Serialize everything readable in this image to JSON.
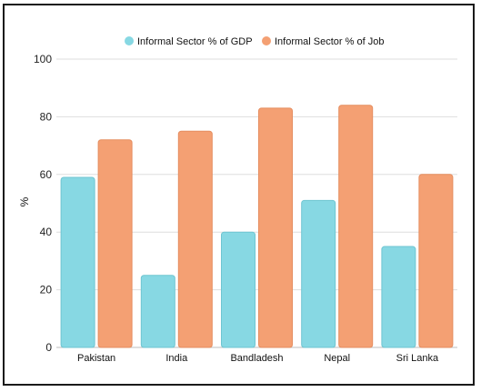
{
  "chart_data": {
    "type": "bar",
    "categories": [
      "Pakistan",
      "India",
      "Bandladesh",
      "Nepal",
      "Sri Lanka"
    ],
    "series": [
      {
        "name": "Informal Sector % of GDP",
        "values": [
          59,
          25,
          40,
          51,
          35
        ],
        "color": "#87d8e3"
      },
      {
        "name": "Informal Sector % of Job",
        "values": [
          72,
          75,
          83,
          84,
          60
        ],
        "color": "#f4a073"
      }
    ],
    "ylabel": "%",
    "ylim": [
      0,
      100
    ],
    "yticks": [
      0,
      20,
      40,
      60,
      80,
      100
    ],
    "grid": true,
    "legend_position": "top"
  }
}
